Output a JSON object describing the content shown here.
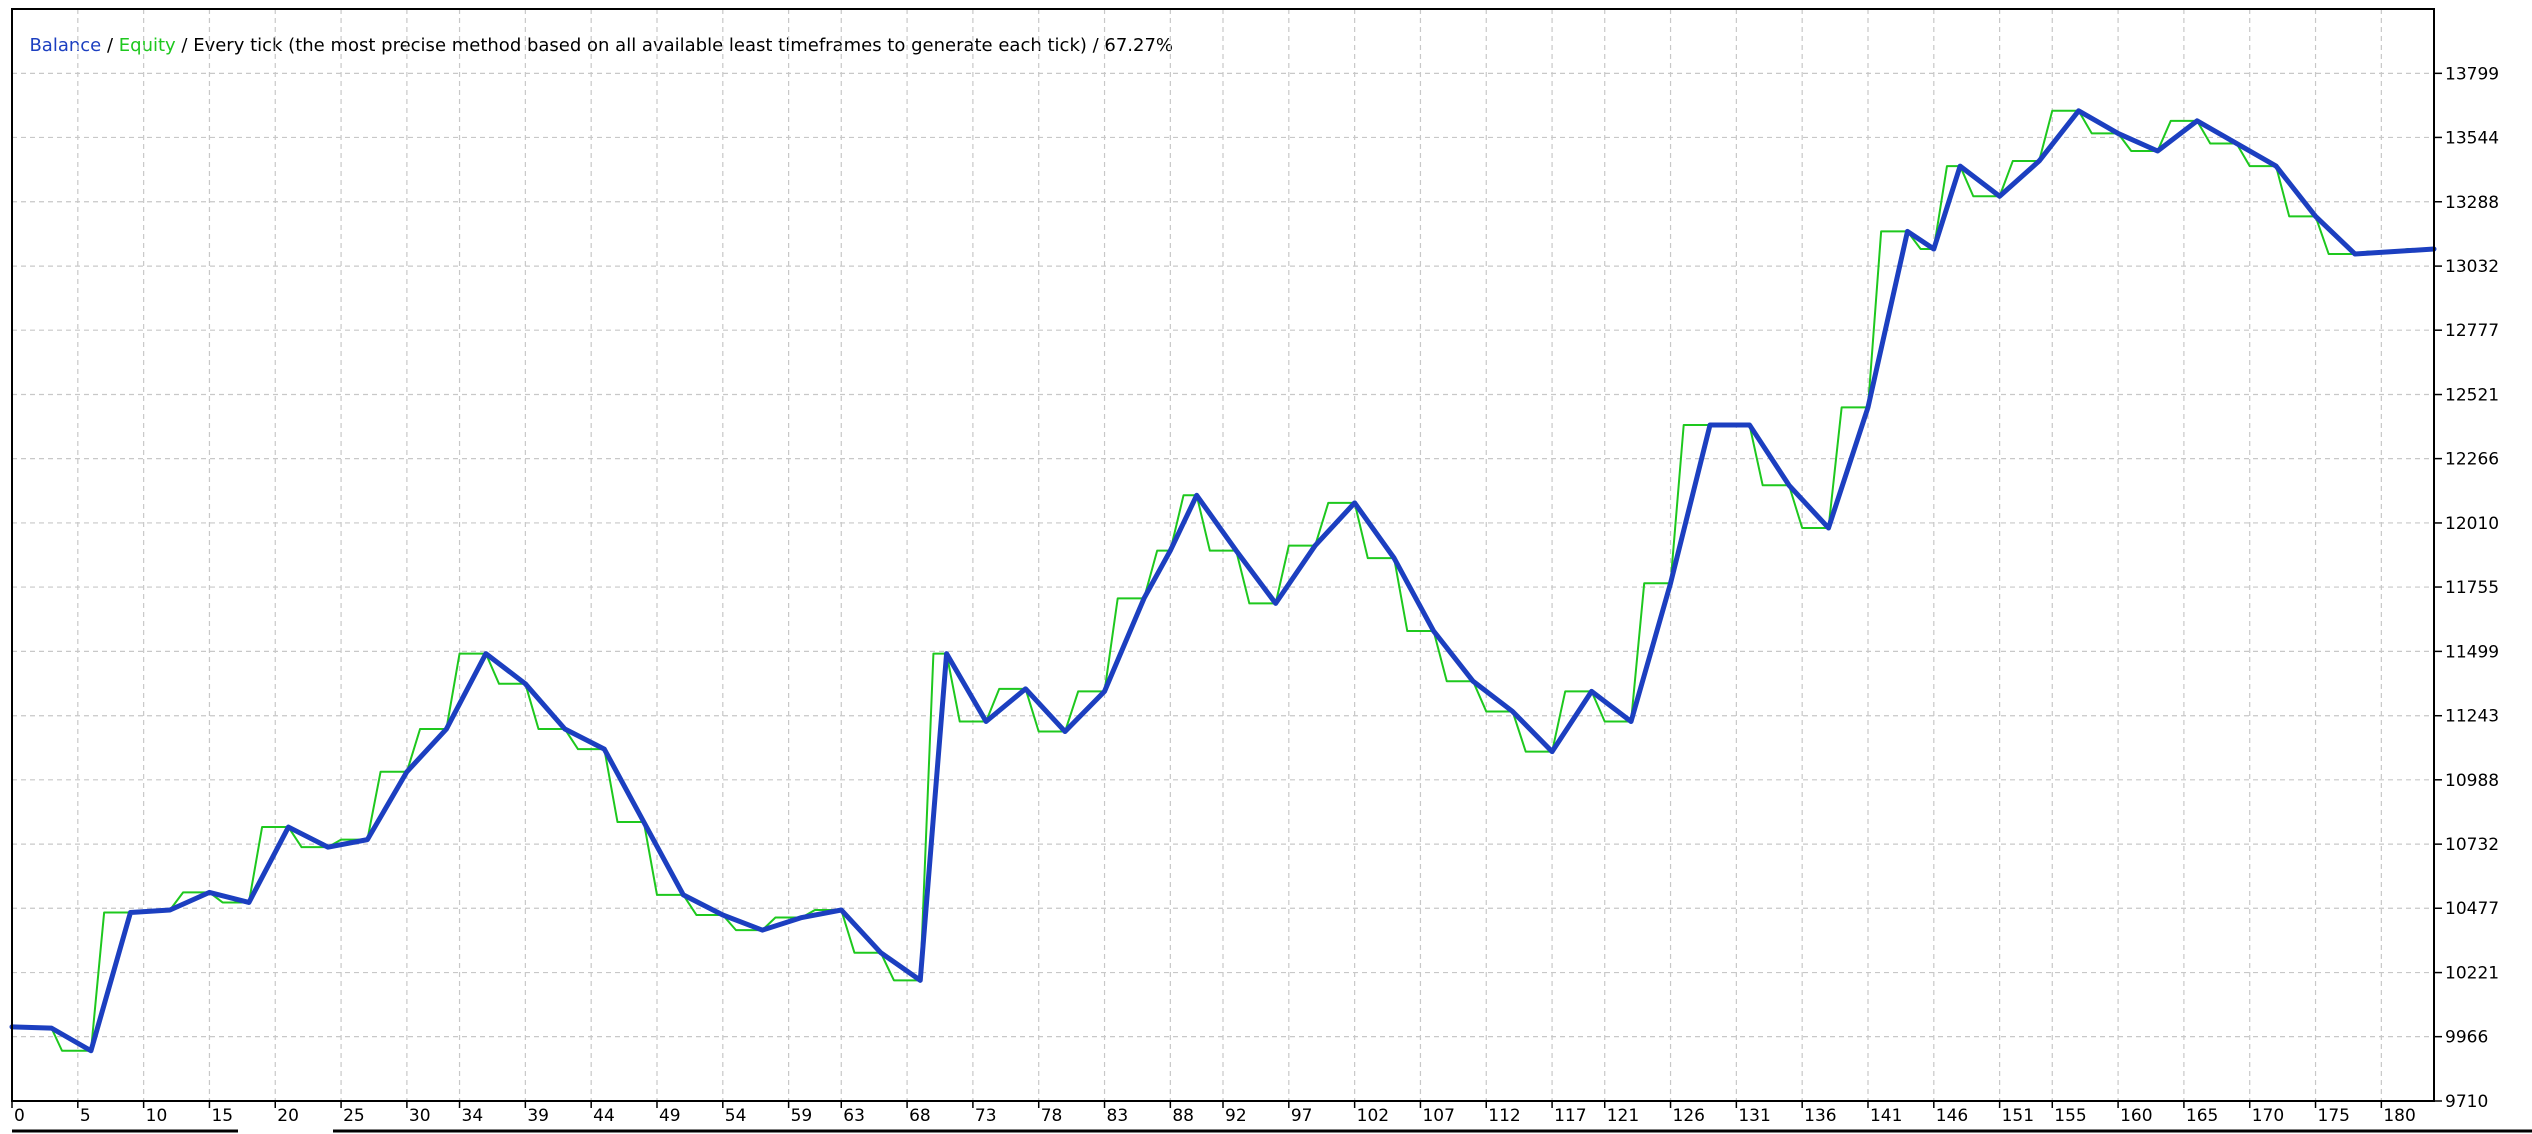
{
  "header": {
    "balance_label": "Balance",
    "sep1": " / ",
    "equity_label": "Equity",
    "description": " / Every tick (the most precise method based on all available least timeframes to generate each tick) / 67.27%"
  },
  "colors": {
    "balance": "#1c3fc0",
    "equity": "#1ec81e",
    "grid": "#c8c8c8",
    "frame": "#000000",
    "header_text": "#000000"
  },
  "chart_data": {
    "type": "line",
    "title": "",
    "xlabel": "",
    "ylabel": "",
    "xlim": [
      0,
      184
    ],
    "ylim": [
      9710,
      14055
    ],
    "grid": true,
    "y_ticks": [
      9710,
      9966,
      10221,
      10477,
      10732,
      10988,
      11243,
      11499,
      11755,
      12010,
      12266,
      12521,
      12777,
      13032,
      13288,
      13544,
      13799
    ],
    "x_ticks": [
      0,
      5,
      10,
      15,
      20,
      25,
      30,
      34,
      39,
      44,
      49,
      54,
      59,
      63,
      68,
      73,
      78,
      83,
      88,
      92,
      97,
      102,
      107,
      112,
      117,
      121,
      126,
      131,
      136,
      141,
      146,
      151,
      155,
      160,
      165,
      170,
      175,
      180
    ],
    "series": [
      {
        "name": "Balance",
        "x": [
          0,
          3,
          6,
          9,
          12,
          15,
          18,
          21,
          24,
          27,
          30,
          33,
          36,
          39,
          42,
          45,
          48,
          51,
          54,
          57,
          60,
          63,
          66,
          69,
          71,
          74,
          77,
          80,
          83,
          86,
          88,
          90,
          93,
          96,
          99,
          102,
          105,
          108,
          111,
          114,
          117,
          120,
          123,
          126,
          129,
          132,
          135,
          138,
          141,
          144,
          146,
          148,
          151,
          154,
          157,
          160,
          163,
          166,
          169,
          172,
          175,
          178,
          181,
          184
        ],
        "y": [
          10005,
          10000,
          9910,
          10460,
          10470,
          10540,
          10500,
          10800,
          10720,
          10750,
          11020,
          11190,
          11490,
          11370,
          11190,
          11110,
          10820,
          10530,
          10450,
          10390,
          10440,
          10470,
          10300,
          10190,
          11490,
          11220,
          11350,
          11180,
          11340,
          11710,
          11900,
          12120,
          11900,
          11690,
          11920,
          12090,
          11870,
          11580,
          11380,
          11260,
          11100,
          11340,
          11220,
          11770,
          12400,
          12400,
          12160,
          11990,
          12470,
          13170,
          13100,
          13430,
          13310,
          13450,
          13650,
          13560,
          13490,
          13610,
          13520,
          13430,
          13230,
          13080,
          13090,
          13100
        ]
      },
      {
        "name": "Equity",
        "x": [
          0,
          3,
          3.8,
          6,
          7,
          9,
          12,
          13,
          15,
          16,
          18,
          19,
          21,
          22,
          24,
          25,
          27,
          28,
          30,
          31,
          33,
          34,
          36,
          37,
          39,
          40,
          42,
          43,
          45,
          46,
          48,
          49,
          51,
          52,
          54,
          55,
          57,
          58,
          60,
          61,
          63,
          64,
          66,
          67,
          69,
          70,
          71,
          72,
          74,
          75,
          77,
          78,
          80,
          81,
          83,
          84,
          86,
          87,
          88,
          89,
          90,
          91,
          93,
          94,
          96,
          97,
          99,
          100,
          102,
          103,
          105,
          106,
          108,
          109,
          111,
          112,
          114,
          115,
          117,
          118,
          120,
          121,
          123,
          124,
          126,
          127,
          129,
          130,
          132,
          133,
          135,
          136,
          138,
          139,
          141,
          142,
          144,
          145,
          146,
          147,
          148,
          149,
          151,
          152,
          154,
          155,
          157,
          158,
          160,
          161,
          163,
          164,
          166,
          167,
          169,
          170,
          172,
          173,
          175,
          176,
          178,
          179,
          181,
          182,
          184
        ],
        "y": [
          10005,
          10000,
          9910,
          9910,
          10460,
          10460,
          10470,
          10540,
          10540,
          10500,
          10500,
          10800,
          10800,
          10720,
          10720,
          10750,
          10750,
          11020,
          11020,
          11190,
          11190,
          11490,
          11490,
          11370,
          11370,
          11190,
          11190,
          11110,
          11110,
          10820,
          10820,
          10530,
          10530,
          10450,
          10450,
          10390,
          10390,
          10440,
          10440,
          10470,
          10470,
          10300,
          10300,
          10190,
          10190,
          11490,
          11490,
          11220,
          11220,
          11350,
          11350,
          11180,
          11180,
          11340,
          11340,
          11710,
          11710,
          11900,
          11900,
          12120,
          12120,
          11900,
          11900,
          11690,
          11690,
          11920,
          11920,
          12090,
          12090,
          11870,
          11870,
          11580,
          11580,
          11380,
          11380,
          11260,
          11260,
          11100,
          11100,
          11340,
          11340,
          11220,
          11220,
          11770,
          11770,
          12400,
          12400,
          12400,
          12400,
          12160,
          12160,
          11990,
          11990,
          12470,
          12470,
          13170,
          13170,
          13100,
          13100,
          13430,
          13430,
          13310,
          13310,
          13450,
          13450,
          13650,
          13650,
          13560,
          13560,
          13490,
          13490,
          13610,
          13610,
          13520,
          13520,
          13430,
          13430,
          13230,
          13230,
          13080,
          13080,
          13090,
          13090,
          13100,
          13100
        ]
      }
    ]
  }
}
